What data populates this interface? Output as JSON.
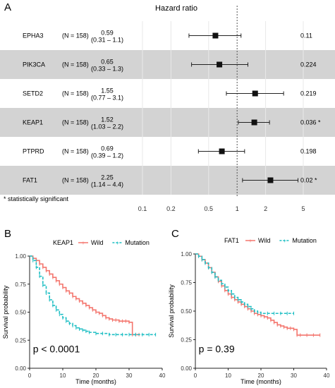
{
  "panels": {
    "a": "A",
    "b": "B",
    "c": "C"
  },
  "chart_data": [
    {
      "type": "forest",
      "title": "Hazard ratio",
      "scale": "log",
      "x_ticks": [
        0.1,
        0.2,
        0.5,
        1,
        2,
        5
      ],
      "x_tick_labels": [
        "0.1",
        "0.2",
        "0.5",
        "1",
        "2",
        "5"
      ],
      "reference_line": 1,
      "rows": [
        {
          "gene": "EPHA3",
          "n_label": "(N = 158)",
          "hr_label": "0.59",
          "ci_label": "(0.31 – 1.1)",
          "hr": 0.59,
          "lo": 0.31,
          "hi": 1.1,
          "p_label": "0.11",
          "shaded": false
        },
        {
          "gene": "PIK3CA",
          "n_label": "(N = 158)",
          "hr_label": "0.65",
          "ci_label": "(0.33 – 1.3)",
          "hr": 0.65,
          "lo": 0.33,
          "hi": 1.3,
          "p_label": "0.224",
          "shaded": true
        },
        {
          "gene": "SETD2",
          "n_label": "(N = 158)",
          "hr_label": "1.55",
          "ci_label": "(0.77 – 3.1)",
          "hr": 1.55,
          "lo": 0.77,
          "hi": 3.1,
          "p_label": "0.219",
          "shaded": false
        },
        {
          "gene": "KEAP1",
          "n_label": "(N = 158)",
          "hr_label": "1.52",
          "ci_label": "(1.03 – 2.2)",
          "hr": 1.52,
          "lo": 1.03,
          "hi": 2.2,
          "p_label": "0.036 *",
          "shaded": true
        },
        {
          "gene": "PTPRD",
          "n_label": "(N = 158)",
          "hr_label": "0.69",
          "ci_label": "(0.39 – 1.2)",
          "hr": 0.69,
          "lo": 0.39,
          "hi": 1.2,
          "p_label": "0.198",
          "shaded": false
        },
        {
          "gene": "FAT1",
          "n_label": "(N = 158)",
          "hr_label": "2.25",
          "ci_label": "(1.14 – 4.4)",
          "hr": 2.25,
          "lo": 1.14,
          "hi": 4.4,
          "p_label": "0.02 *",
          "shaded": true
        }
      ],
      "footnote": "* statistically significant"
    },
    {
      "type": "line",
      "subtype": "kaplan-meier",
      "legend_title": "KEAP1",
      "legend_position": "top",
      "xlabel": "Time (months)",
      "ylabel": "Survival probability",
      "xlim": [
        0,
        40
      ],
      "ylim": [
        0,
        1
      ],
      "x_ticks": [
        0,
        10,
        20,
        30,
        40
      ],
      "y_ticks": [
        0,
        0.25,
        0.5,
        0.75,
        1
      ],
      "y_tick_labels": [
        "0.00",
        "0.25",
        "0.50",
        "0.75",
        "1.00"
      ],
      "annotation": "p < 0.0001",
      "series": [
        {
          "name": "Wild",
          "color": "#f4766e",
          "style": "solid",
          "x": [
            0,
            1,
            2,
            3,
            4,
            5,
            6,
            7,
            8,
            9,
            10,
            11,
            12,
            13,
            14,
            15,
            16,
            17,
            18,
            19,
            20,
            21,
            22,
            23,
            24,
            25,
            26,
            27,
            28,
            29,
            30,
            31,
            32,
            33
          ],
          "y": [
            1.0,
            0.98,
            0.96,
            0.93,
            0.9,
            0.87,
            0.84,
            0.81,
            0.78,
            0.75,
            0.72,
            0.69,
            0.67,
            0.64,
            0.62,
            0.6,
            0.58,
            0.56,
            0.54,
            0.52,
            0.5,
            0.49,
            0.47,
            0.45,
            0.44,
            0.43,
            0.43,
            0.42,
            0.42,
            0.42,
            0.41,
            0.3,
            0.3,
            0.3
          ]
        },
        {
          "name": "Mutation",
          "color": "#1fbfc4",
          "style": "dashed",
          "x": [
            0,
            1,
            2,
            3,
            4,
            5,
            6,
            7,
            8,
            9,
            10,
            11,
            12,
            13,
            14,
            15,
            16,
            17,
            18,
            20,
            22,
            24,
            26,
            28,
            30,
            32,
            34,
            36,
            38
          ],
          "y": [
            1.0,
            0.96,
            0.9,
            0.82,
            0.74,
            0.67,
            0.61,
            0.56,
            0.52,
            0.48,
            0.45,
            0.42,
            0.4,
            0.38,
            0.36,
            0.35,
            0.34,
            0.33,
            0.32,
            0.31,
            0.31,
            0.3,
            0.3,
            0.3,
            0.3,
            0.3,
            0.3,
            0.3,
            0.3
          ]
        }
      ]
    },
    {
      "type": "line",
      "subtype": "kaplan-meier",
      "legend_title": "FAT1",
      "legend_position": "top",
      "xlabel": "Time (months)",
      "ylabel": "Survival probability",
      "xlim": [
        0,
        40
      ],
      "ylim": [
        0,
        1
      ],
      "x_ticks": [
        0,
        10,
        20,
        30,
        40
      ],
      "y_ticks": [
        0,
        0.25,
        0.5,
        0.75,
        1
      ],
      "y_tick_labels": [
        "0.00",
        "0.25",
        "0.50",
        "0.75",
        "1.00"
      ],
      "annotation": "p = 0.39",
      "series": [
        {
          "name": "Wild",
          "color": "#f4766e",
          "style": "solid",
          "x": [
            0,
            1,
            2,
            3,
            4,
            5,
            6,
            7,
            8,
            9,
            10,
            11,
            12,
            13,
            14,
            15,
            16,
            17,
            18,
            19,
            20,
            21,
            22,
            23,
            24,
            25,
            26,
            27,
            28,
            29,
            30,
            31,
            32,
            34,
            36,
            38
          ],
          "y": [
            1.0,
            0.98,
            0.95,
            0.92,
            0.88,
            0.84,
            0.8,
            0.76,
            0.72,
            0.68,
            0.65,
            0.62,
            0.6,
            0.58,
            0.56,
            0.54,
            0.52,
            0.5,
            0.48,
            0.47,
            0.46,
            0.45,
            0.44,
            0.42,
            0.4,
            0.38,
            0.37,
            0.36,
            0.35,
            0.35,
            0.34,
            0.29,
            0.29,
            0.29,
            0.29,
            0.29
          ]
        },
        {
          "name": "Mutation",
          "color": "#1fbfc4",
          "style": "dashed",
          "x": [
            0,
            1,
            2,
            3,
            4,
            5,
            6,
            7,
            8,
            9,
            10,
            11,
            12,
            13,
            14,
            15,
            16,
            17,
            18,
            19,
            20,
            22,
            24,
            26,
            28,
            30
          ],
          "y": [
            1.0,
            0.98,
            0.95,
            0.92,
            0.88,
            0.84,
            0.8,
            0.77,
            0.74,
            0.71,
            0.68,
            0.65,
            0.62,
            0.6,
            0.58,
            0.56,
            0.54,
            0.52,
            0.5,
            0.49,
            0.48,
            0.48,
            0.48,
            0.48,
            0.48,
            0.48
          ]
        }
      ]
    }
  ]
}
